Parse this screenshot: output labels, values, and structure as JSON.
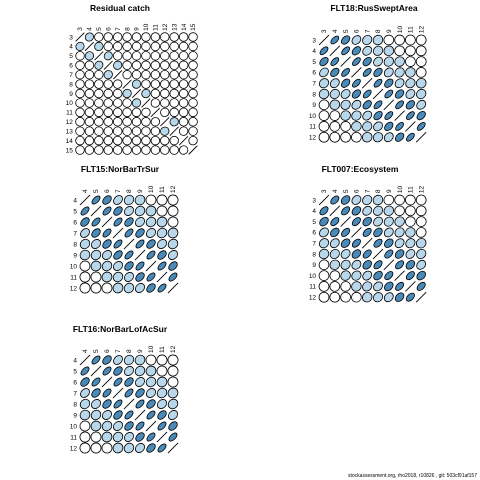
{
  "footer": "stockassessment.org, rho2018, r10826 , git: 503cf91af157",
  "colors": {
    "positive": "#4a8ab8",
    "light": "#b9d7ea",
    "outline": "#000000"
  },
  "chart_data": [
    {
      "type": "correlation-ellipse-matrix",
      "title": "Residual catch",
      "labels": [
        "3",
        "4",
        "5",
        "6",
        "7",
        "8",
        "9",
        "10",
        "11",
        "12",
        "13",
        "14",
        "15"
      ],
      "correlations": [
        [
          1,
          0.4,
          0.15,
          0,
          0,
          0,
          0,
          0,
          0,
          0,
          0,
          0,
          0
        ],
        [
          0.4,
          1,
          0.3,
          0,
          0,
          0,
          0,
          0,
          0,
          0,
          0,
          0,
          0
        ],
        [
          0.15,
          0.3,
          1,
          0.45,
          0.1,
          0,
          0,
          0,
          0,
          0,
          0,
          0,
          0
        ],
        [
          0,
          0,
          0.45,
          1,
          0.35,
          0,
          0,
          0,
          0,
          0,
          0,
          0,
          0
        ],
        [
          0,
          0,
          0.1,
          0.35,
          1,
          0.25,
          0,
          0,
          0,
          0,
          0,
          0,
          0
        ],
        [
          0,
          0,
          0,
          0,
          0.25,
          1,
          0.3,
          0,
          0,
          0,
          0,
          0,
          0
        ],
        [
          0,
          0,
          0,
          0,
          0,
          0.3,
          1,
          0.3,
          0,
          0,
          0,
          0,
          0
        ],
        [
          0,
          0,
          0,
          0,
          0,
          0,
          0.3,
          1,
          0.2,
          0,
          0,
          0,
          0
        ],
        [
          0,
          0,
          0,
          0,
          0,
          0,
          0,
          0.2,
          1,
          0.25,
          0.1,
          0,
          0
        ],
        [
          0,
          0,
          0,
          0,
          0,
          0,
          0,
          0,
          0.25,
          1,
          0.3,
          0,
          0
        ],
        [
          0,
          0,
          0,
          0,
          0,
          0,
          0,
          0,
          0.1,
          0.3,
          1,
          0.2,
          0
        ],
        [
          0,
          0,
          0,
          0,
          0,
          0,
          0,
          0,
          0,
          0,
          0.2,
          1,
          0.25
        ],
        [
          0,
          0,
          0,
          0,
          0,
          0,
          0,
          0,
          0,
          0,
          0,
          0.25,
          1
        ]
      ]
    },
    {
      "type": "correlation-ellipse-matrix",
      "title": "FLT18:RusSweptArea",
      "labels": [
        "3",
        "4",
        "5",
        "6",
        "7",
        "8",
        "9",
        "10",
        "11",
        "12"
      ],
      "correlations": [
        [
          1,
          0.85,
          0.75,
          0.65,
          0.5,
          0.35,
          0.2,
          0.1,
          0,
          0
        ],
        [
          0.85,
          1,
          0.85,
          0.75,
          0.6,
          0.45,
          0.3,
          0.15,
          0.1,
          0
        ],
        [
          0.75,
          0.85,
          1,
          0.85,
          0.75,
          0.6,
          0.45,
          0.3,
          0.15,
          0.1
        ],
        [
          0.65,
          0.75,
          0.85,
          1,
          0.85,
          0.75,
          0.6,
          0.45,
          0.3,
          0.15
        ],
        [
          0.5,
          0.6,
          0.75,
          0.85,
          1,
          0.85,
          0.75,
          0.6,
          0.45,
          0.3
        ],
        [
          0.35,
          0.45,
          0.6,
          0.75,
          0.85,
          1,
          0.85,
          0.75,
          0.6,
          0.45
        ],
        [
          0.2,
          0.3,
          0.45,
          0.6,
          0.75,
          0.85,
          1,
          0.85,
          0.75,
          0.6
        ],
        [
          0.1,
          0.15,
          0.3,
          0.45,
          0.6,
          0.75,
          0.85,
          1,
          0.85,
          0.75
        ],
        [
          0,
          0.1,
          0.15,
          0.3,
          0.45,
          0.6,
          0.75,
          0.85,
          1,
          0.85
        ],
        [
          0,
          0,
          0.1,
          0.15,
          0.3,
          0.45,
          0.6,
          0.75,
          0.85,
          1
        ]
      ]
    },
    {
      "type": "correlation-ellipse-matrix",
      "title": "FLT15:NorBarTrSur",
      "labels": [
        "4",
        "5",
        "6",
        "7",
        "8",
        "9",
        "10",
        "11",
        "12"
      ],
      "correlations": [
        [
          1,
          0.85,
          0.75,
          0.65,
          0.5,
          0.35,
          0.2,
          0.1,
          0
        ],
        [
          0.85,
          1,
          0.85,
          0.75,
          0.6,
          0.45,
          0.3,
          0.15,
          0.1
        ],
        [
          0.75,
          0.85,
          1,
          0.85,
          0.75,
          0.6,
          0.45,
          0.3,
          0.15
        ],
        [
          0.65,
          0.75,
          0.85,
          1,
          0.85,
          0.75,
          0.6,
          0.45,
          0.3
        ],
        [
          0.5,
          0.6,
          0.75,
          0.85,
          1,
          0.85,
          0.75,
          0.6,
          0.45
        ],
        [
          0.35,
          0.45,
          0.6,
          0.75,
          0.85,
          1,
          0.85,
          0.75,
          0.6
        ],
        [
          0.2,
          0.3,
          0.45,
          0.6,
          0.75,
          0.85,
          1,
          0.85,
          0.75
        ],
        [
          0.1,
          0.15,
          0.3,
          0.45,
          0.6,
          0.75,
          0.85,
          1,
          0.85
        ],
        [
          0,
          0.1,
          0.15,
          0.3,
          0.45,
          0.6,
          0.75,
          0.85,
          1
        ]
      ]
    },
    {
      "type": "correlation-ellipse-matrix",
      "title": "FLT007:Ecosystem",
      "labels": [
        "3",
        "4",
        "5",
        "6",
        "7",
        "8",
        "9",
        "10",
        "11",
        "12"
      ],
      "correlations": [
        [
          1,
          0.8,
          0.7,
          0.6,
          0.5,
          0.35,
          0.25,
          0.15,
          0.1,
          0
        ],
        [
          0.8,
          1,
          0.8,
          0.7,
          0.6,
          0.5,
          0.35,
          0.25,
          0.15,
          0.1
        ],
        [
          0.7,
          0.8,
          1,
          0.8,
          0.7,
          0.6,
          0.5,
          0.35,
          0.25,
          0.15
        ],
        [
          0.6,
          0.7,
          0.8,
          1,
          0.8,
          0.7,
          0.6,
          0.5,
          0.35,
          0.25
        ],
        [
          0.5,
          0.6,
          0.7,
          0.8,
          1,
          0.8,
          0.7,
          0.6,
          0.5,
          0.35
        ],
        [
          0.35,
          0.5,
          0.6,
          0.7,
          0.8,
          1,
          0.8,
          0.7,
          0.6,
          0.5
        ],
        [
          0.25,
          0.35,
          0.5,
          0.6,
          0.7,
          0.8,
          1,
          0.8,
          0.7,
          0.6
        ],
        [
          0.15,
          0.25,
          0.35,
          0.5,
          0.6,
          0.7,
          0.8,
          1,
          0.8,
          0.7
        ],
        [
          0.1,
          0.15,
          0.25,
          0.35,
          0.5,
          0.6,
          0.7,
          0.8,
          1,
          0.8
        ],
        [
          0,
          0.1,
          0.15,
          0.25,
          0.35,
          0.5,
          0.6,
          0.7,
          0.8,
          1
        ]
      ]
    },
    {
      "type": "correlation-ellipse-matrix",
      "title": "FLT16:NorBarLofAcSur",
      "labels": [
        "4",
        "5",
        "6",
        "7",
        "8",
        "9",
        "10",
        "11",
        "12"
      ],
      "correlations": [
        [
          1,
          0.85,
          0.75,
          0.65,
          0.5,
          0.35,
          0.2,
          0.1,
          0
        ],
        [
          0.85,
          1,
          0.85,
          0.75,
          0.6,
          0.45,
          0.3,
          0.15,
          0.1
        ],
        [
          0.75,
          0.85,
          1,
          0.85,
          0.75,
          0.6,
          0.45,
          0.3,
          0.15
        ],
        [
          0.65,
          0.75,
          0.85,
          1,
          0.85,
          0.75,
          0.6,
          0.45,
          0.3
        ],
        [
          0.5,
          0.6,
          0.75,
          0.85,
          1,
          0.85,
          0.75,
          0.6,
          0.45
        ],
        [
          0.35,
          0.45,
          0.6,
          0.75,
          0.85,
          1,
          0.85,
          0.75,
          0.6
        ],
        [
          0.2,
          0.3,
          0.45,
          0.6,
          0.75,
          0.85,
          1,
          0.85,
          0.75
        ],
        [
          0.1,
          0.15,
          0.3,
          0.45,
          0.6,
          0.75,
          0.85,
          1,
          0.85
        ],
        [
          0,
          0.1,
          0.15,
          0.3,
          0.45,
          0.6,
          0.75,
          0.85,
          1
        ]
      ]
    }
  ]
}
